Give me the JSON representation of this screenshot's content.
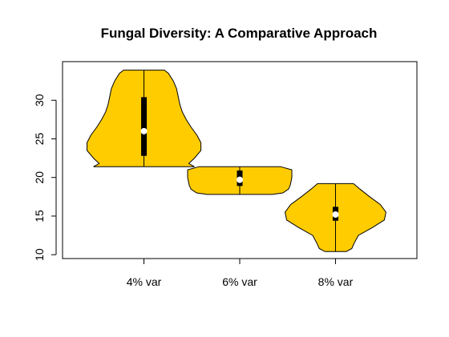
{
  "chart_data": {
    "type": "violin",
    "title": "Fungal Diversity: A Comparative Approach",
    "xlabel": "",
    "ylabel": "",
    "categories": [
      "4% var",
      "6% var",
      "8% var"
    ],
    "ylim": [
      9.5,
      35
    ],
    "yticks": [
      "10",
      "15",
      "20",
      "25",
      "30"
    ],
    "grid": false,
    "fill_color": "#FFCC00",
    "outline_color": "#000000",
    "box_color": "#000000",
    "median_color": "#FFFFFF",
    "violins": [
      {
        "category": "4% var",
        "min": 21.4,
        "q1": 22.8,
        "median": 26.0,
        "q3": 30.4,
        "max": 33.9,
        "density": [
          [
            21.4,
            0.62
          ],
          [
            21.8,
            0.55
          ],
          [
            22.5,
            0.62
          ],
          [
            23.5,
            0.7
          ],
          [
            24.5,
            0.7
          ],
          [
            25.5,
            0.65
          ],
          [
            26.5,
            0.58
          ],
          [
            27.5,
            0.52
          ],
          [
            28.5,
            0.47
          ],
          [
            29.5,
            0.44
          ],
          [
            30.5,
            0.42
          ],
          [
            31.5,
            0.4
          ],
          [
            32.5,
            0.36
          ],
          [
            33.5,
            0.3
          ],
          [
            33.9,
            0.25
          ]
        ]
      },
      {
        "category": "6% var",
        "min": 17.8,
        "q1": 18.9,
        "median": 19.7,
        "q3": 20.9,
        "max": 21.4,
        "density": [
          [
            17.8,
            0.4
          ],
          [
            18.0,
            0.53
          ],
          [
            18.5,
            0.6
          ],
          [
            19.0,
            0.62
          ],
          [
            20.0,
            0.64
          ],
          [
            21.0,
            0.64
          ],
          [
            21.4,
            0.5
          ]
        ]
      },
      {
        "category": "8% var",
        "min": 10.4,
        "q1": 14.4,
        "median": 15.2,
        "q3": 16.2,
        "max": 19.2,
        "density": [
          [
            10.4,
            0.13
          ],
          [
            10.8,
            0.2
          ],
          [
            11.5,
            0.23
          ],
          [
            12.5,
            0.28
          ],
          [
            13.5,
            0.45
          ],
          [
            14.5,
            0.6
          ],
          [
            15.5,
            0.62
          ],
          [
            16.5,
            0.55
          ],
          [
            17.5,
            0.42
          ],
          [
            18.5,
            0.3
          ],
          [
            19.2,
            0.22
          ]
        ]
      }
    ]
  }
}
